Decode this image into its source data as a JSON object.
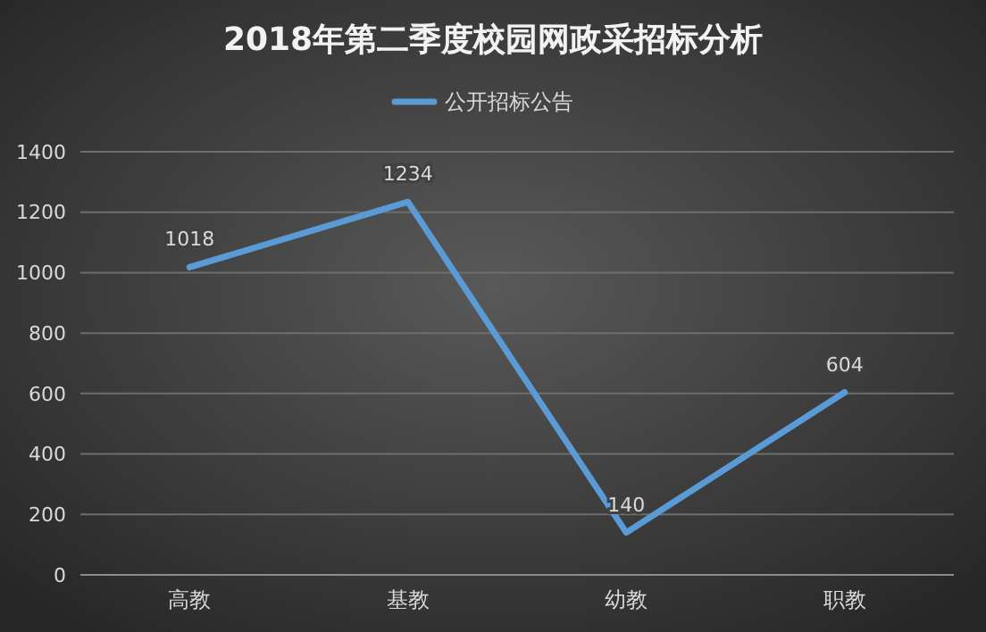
{
  "chart_data": {
    "type": "line",
    "title": "2018年第二季度校园网政采招标分析",
    "categories": [
      "高教",
      "基教",
      "幼教",
      "职教"
    ],
    "series": [
      {
        "name": "公开招标公告",
        "color": "#5b9bd5",
        "values": [
          1018,
          1234,
          140,
          604
        ]
      }
    ],
    "ylim": [
      0,
      1400
    ],
    "yticks": [
      0,
      200,
      400,
      600,
      800,
      1000,
      1200,
      1400
    ],
    "grid": "y",
    "legend": "top",
    "data_labels": true,
    "marker": "none",
    "line_style": "solid"
  }
}
